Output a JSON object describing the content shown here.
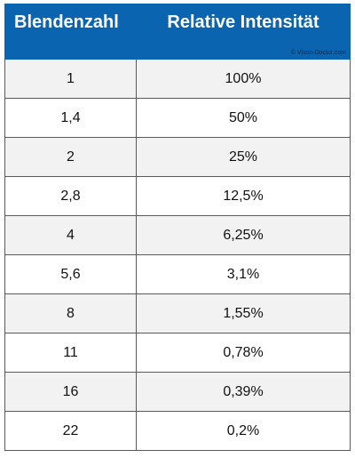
{
  "table": {
    "headers": [
      "Blendenzahl",
      "Relative Intensität"
    ],
    "copyright": "© Vison-Doctor.com",
    "rows": [
      [
        "1",
        "100%"
      ],
      [
        "1,4",
        "50%"
      ],
      [
        "2",
        "25%"
      ],
      [
        "2,8",
        "12,5%"
      ],
      [
        "4",
        "6,25%"
      ],
      [
        "5,6",
        "3,1%"
      ],
      [
        "8",
        "1,55%"
      ],
      [
        "11",
        "0,78%"
      ],
      [
        "16",
        "0,39%"
      ],
      [
        "22",
        "0,2%"
      ]
    ]
  },
  "colors": {
    "header_bg": "#0a64b0",
    "header_text": "#ffffff",
    "row_alt": "#f2f2f2",
    "row": "#ffffff",
    "border": "#5a5a5a"
  }
}
